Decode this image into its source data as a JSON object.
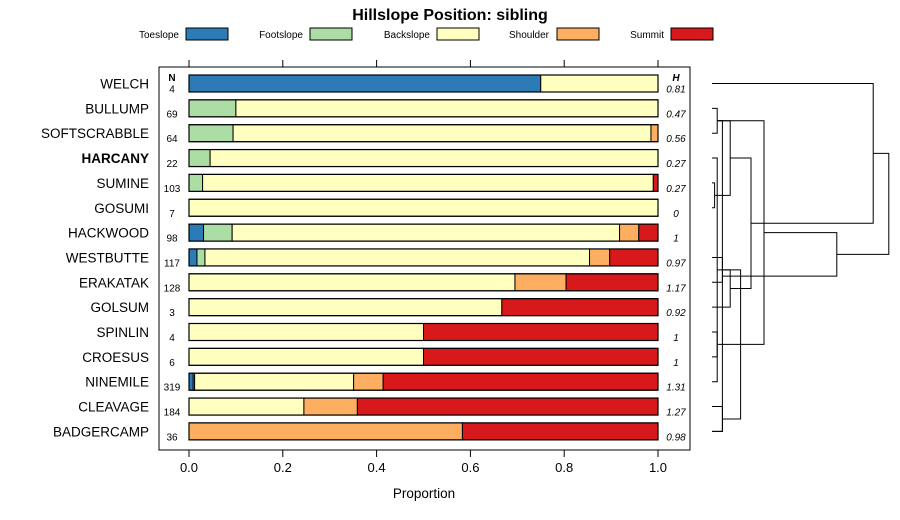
{
  "chart_data": {
    "type": "bar",
    "orientation": "horizontal",
    "stacked": true,
    "title": "Hillslope Position: sibling",
    "xlabel": "Proportion",
    "xlim": [
      0,
      1
    ],
    "x_ticks": [
      "0.0",
      "0.2",
      "0.4",
      "0.6",
      "0.8",
      "1.0"
    ],
    "x_tick_values": [
      0,
      0.2,
      0.4,
      0.6,
      0.8,
      1.0
    ],
    "n_header": "N",
    "h_header": "H",
    "legend_position": "top",
    "series": [
      {
        "name": "Toeslope",
        "color": "#2c7bb6"
      },
      {
        "name": "Footslope",
        "color": "#abdda4"
      },
      {
        "name": "Backslope",
        "color": "#ffffbf"
      },
      {
        "name": "Shoulder",
        "color": "#fdae61"
      },
      {
        "name": "Summit",
        "color": "#d7191c"
      }
    ],
    "rows": [
      {
        "label": "WELCH",
        "bold": false,
        "n": "4",
        "h": "0.81",
        "values": [
          0.75,
          0,
          0.25,
          0,
          0
        ]
      },
      {
        "label": "BULLUMP",
        "bold": false,
        "n": "69",
        "h": "0.47",
        "values": [
          0,
          0.1,
          0.9,
          0,
          0
        ]
      },
      {
        "label": "SOFTSCRABBLE",
        "bold": false,
        "n": "64",
        "h": "0.56",
        "values": [
          0,
          0.094,
          0.891,
          0.015,
          0
        ]
      },
      {
        "label": "HARCANY",
        "bold": true,
        "n": "22",
        "h": "0.27",
        "values": [
          0,
          0.045,
          0.955,
          0,
          0
        ]
      },
      {
        "label": "SUMINE",
        "bold": false,
        "n": "103",
        "h": "0.27",
        "values": [
          0,
          0.029,
          0.961,
          0,
          0.01
        ]
      },
      {
        "label": "GOSUMI",
        "bold": false,
        "n": "7",
        "h": "0",
        "values": [
          0,
          0,
          1.0,
          0,
          0
        ]
      },
      {
        "label": "HACKWOOD",
        "bold": false,
        "n": "98",
        "h": "1",
        "values": [
          0.031,
          0.061,
          0.826,
          0.041,
          0.041
        ]
      },
      {
        "label": "WESTBUTTE",
        "bold": false,
        "n": "117",
        "h": "0.97",
        "values": [
          0.017,
          0.017,
          0.82,
          0.043,
          0.103
        ]
      },
      {
        "label": "ERAKATAK",
        "bold": false,
        "n": "128",
        "h": "1.17",
        "values": [
          0,
          0,
          0.695,
          0.109,
          0.196
        ]
      },
      {
        "label": "GOLSUM",
        "bold": false,
        "n": "3",
        "h": "0.92",
        "values": [
          0,
          0,
          0.667,
          0,
          0.333
        ]
      },
      {
        "label": "SPINLIN",
        "bold": false,
        "n": "4",
        "h": "1",
        "values": [
          0,
          0,
          0.5,
          0,
          0.5
        ]
      },
      {
        "label": "CROESUS",
        "bold": false,
        "n": "6",
        "h": "1",
        "values": [
          0,
          0,
          0.5,
          0,
          0.5
        ]
      },
      {
        "label": "NINEMILE",
        "bold": false,
        "n": "319",
        "h": "1.31",
        "values": [
          0.009,
          0.003,
          0.339,
          0.063,
          0.586
        ]
      },
      {
        "label": "CLEAVAGE",
        "bold": false,
        "n": "184",
        "h": "1.27",
        "values": [
          0,
          0,
          0.245,
          0.114,
          0.641
        ]
      },
      {
        "label": "BADGERCAMP",
        "bold": false,
        "n": "36",
        "h": "0.98",
        "values": [
          0,
          0,
          0,
          0.583,
          0.417
        ]
      }
    ],
    "dendrogram": {
      "leaf_order": [
        "WELCH",
        "BULLUMP",
        "SOFTSCRABBLE",
        "HARCANY",
        "SUMINE",
        "GOSUMI",
        "HACKWOOD",
        "WESTBUTTE",
        "ERAKATAK",
        "GOLSUM",
        "SPINLIN",
        "CROESUS",
        "NINEMILE",
        "CLEAVAGE",
        "BADGERCAMP"
      ],
      "merges": [
        [
          1,
          2,
          0.02
        ],
        [
          4,
          5,
          0.01
        ],
        [
          3,
          12,
          0.02
        ],
        [
          13,
          14,
          0.04
        ],
        [
          15,
          16,
          0.07
        ],
        [
          7,
          8,
          0.04
        ],
        [
          17,
          18,
          0.11
        ],
        [
          10,
          11,
          0.02
        ],
        [
          9,
          20,
          0.07
        ],
        [
          13.5,
          14.5,
          0.04
        ],
        [
          22,
          15,
          0.2
        ],
        [
          23,
          19,
          0.15
        ],
        [
          24,
          25,
          0.48
        ],
        [
          26,
          0,
          0.62
        ],
        [
          27,
          28,
          0.68
        ]
      ]
    }
  }
}
